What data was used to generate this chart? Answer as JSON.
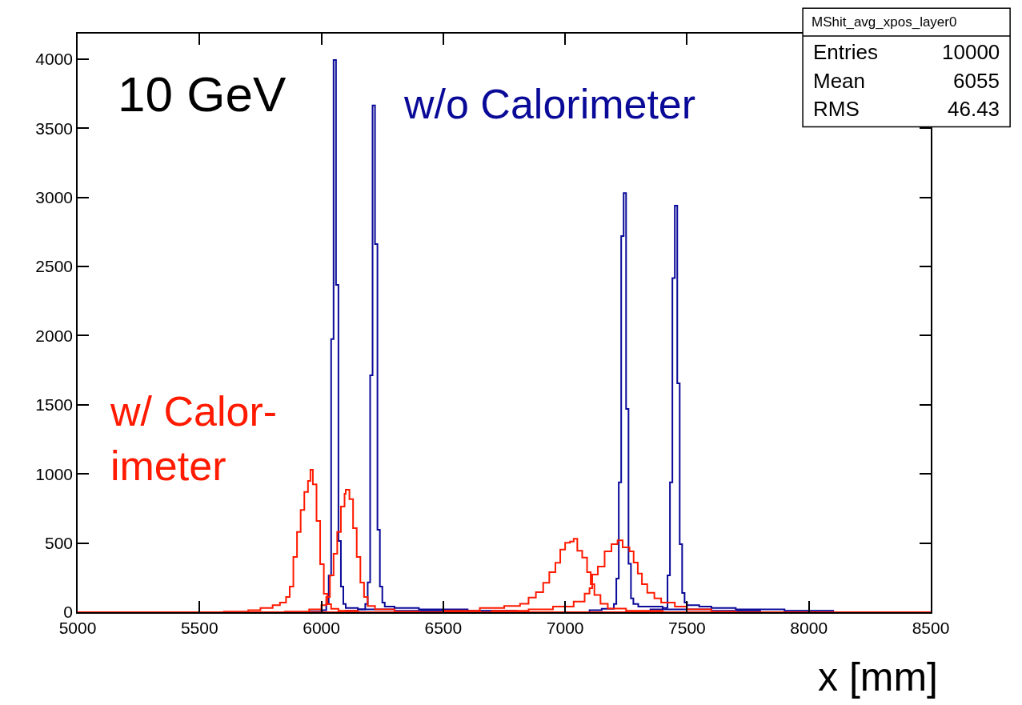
{
  "chart_data": {
    "type": "step",
    "xlabel": "x [mm]",
    "annotations": [
      "10 GeV",
      "MShit_avg_xpos_layer0",
      "Entries 10000",
      "Mean 6055",
      "RMS 46.43"
    ],
    "xlim": [
      5000,
      8500
    ],
    "ylim": [
      0,
      4185
    ],
    "xticks": [
      5000,
      5500,
      6000,
      6500,
      7000,
      7500,
      8000,
      8500
    ],
    "yticks": [
      0,
      500,
      1000,
      1500,
      2000,
      2500,
      3000,
      3500,
      4000
    ],
    "grid": false,
    "legend": false,
    "marker": "none",
    "line_style": "solid",
    "series": [
      {
        "name": "w/o Calorimeter",
        "color": "#0a0a99",
        "x": [
          5000,
          5800,
          5950,
          6000,
          6020,
          6030,
          6040,
          6050,
          6060,
          6070,
          6080,
          6090,
          6100,
          6150,
          6300,
          6600,
          8500
        ],
        "values": [
          0,
          0,
          5,
          15,
          60,
          265,
          1976,
          3994,
          2368,
          515,
          185,
          60,
          30,
          20,
          10,
          0,
          0
        ]
      },
      {
        "color": "#0a0a99",
        "x": [
          5000,
          5900,
          6100,
          6150,
          6180,
          6190,
          6200,
          6210,
          6220,
          6230,
          6240,
          6250,
          6260,
          6300,
          6400,
          6600,
          6800,
          8500
        ],
        "values": [
          0,
          0,
          10,
          20,
          60,
          215,
          1713,
          3665,
          2663,
          596,
          185,
          70,
          40,
          30,
          20,
          10,
          0,
          0
        ]
      },
      {
        "color": "#0a0a99",
        "x": [
          5000,
          6900,
          7100,
          7150,
          7200,
          7210,
          7220,
          7230,
          7240,
          7250,
          7260,
          7270,
          7280,
          7300,
          7400,
          7600,
          7800,
          8500
        ],
        "values": [
          0,
          0,
          15,
          25,
          60,
          243,
          939,
          2720,
          3031,
          1470,
          350,
          100,
          60,
          40,
          20,
          10,
          0,
          0
        ]
      },
      {
        "color": "#0a0a99",
        "x": [
          5000,
          7200,
          7350,
          7400,
          7420,
          7430,
          7440,
          7450,
          7460,
          7470,
          7480,
          7490,
          7500,
          7550,
          7600,
          7700,
          7900,
          8100,
          8500
        ],
        "values": [
          0,
          0,
          20,
          30,
          266,
          939,
          2416,
          2941,
          1655,
          492,
          139,
          70,
          50,
          40,
          30,
          20,
          10,
          0,
          0
        ]
      },
      {
        "name": "w/ Calor-\nimeter",
        "color": "#ff1a00",
        "x": [
          5000,
          5400,
          5600,
          5700,
          5750,
          5800,
          5830,
          5855,
          5870,
          5885,
          5900,
          5915,
          5930,
          5945,
          5955,
          5965,
          5980,
          5995,
          6010,
          6025,
          6040,
          6070,
          6150,
          8500
        ],
        "values": [
          0,
          0,
          5,
          15,
          30,
          50,
          70,
          110,
          185,
          400,
          580,
          740,
          870,
          950,
          1030,
          925,
          660,
          347,
          133,
          58,
          25,
          10,
          0,
          0
        ]
      },
      {
        "color": "#ff1a00",
        "x": [
          5000,
          5700,
          5850,
          5950,
          6000,
          6020,
          6035,
          6050,
          6065,
          6080,
          6095,
          6100,
          6115,
          6130,
          6145,
          6160,
          6175,
          6190,
          6220,
          6300,
          6400,
          8500
        ],
        "values": [
          0,
          0,
          5,
          20,
          50,
          110,
          266,
          423,
          580,
          764,
          857,
          886,
          818,
          608,
          400,
          214,
          110,
          45,
          20,
          5,
          0,
          0
        ]
      },
      {
        "color": "#ff1a00",
        "x": [
          5000,
          6300,
          6500,
          6650,
          6750,
          6815,
          6850,
          6880,
          6910,
          6935,
          6960,
          6980,
          7000,
          7020,
          7035,
          7050,
          7070,
          7090,
          7105,
          7120,
          7145,
          7175,
          7250,
          7400,
          8500
        ],
        "values": [
          0,
          0,
          10,
          30,
          45,
          61,
          106,
          145,
          212,
          289,
          357,
          453,
          502,
          511,
          531,
          444,
          395,
          289,
          203,
          125,
          61,
          26,
          10,
          0,
          0
        ]
      },
      {
        "color": "#ff1a00",
        "x": [
          5000,
          6500,
          6700,
          6850,
          6950,
          7035,
          7080,
          7100,
          7111,
          7134,
          7162,
          7190,
          7215,
          7236,
          7264,
          7281,
          7298,
          7315,
          7337,
          7366,
          7394,
          7450,
          7500,
          7600,
          7700,
          8500
        ],
        "values": [
          0,
          0,
          10,
          20,
          40,
          77,
          135,
          174,
          272,
          330,
          440,
          492,
          520,
          469,
          440,
          359,
          280,
          203,
          140,
          100,
          70,
          40,
          20,
          5,
          0,
          0
        ]
      }
    ]
  }
}
